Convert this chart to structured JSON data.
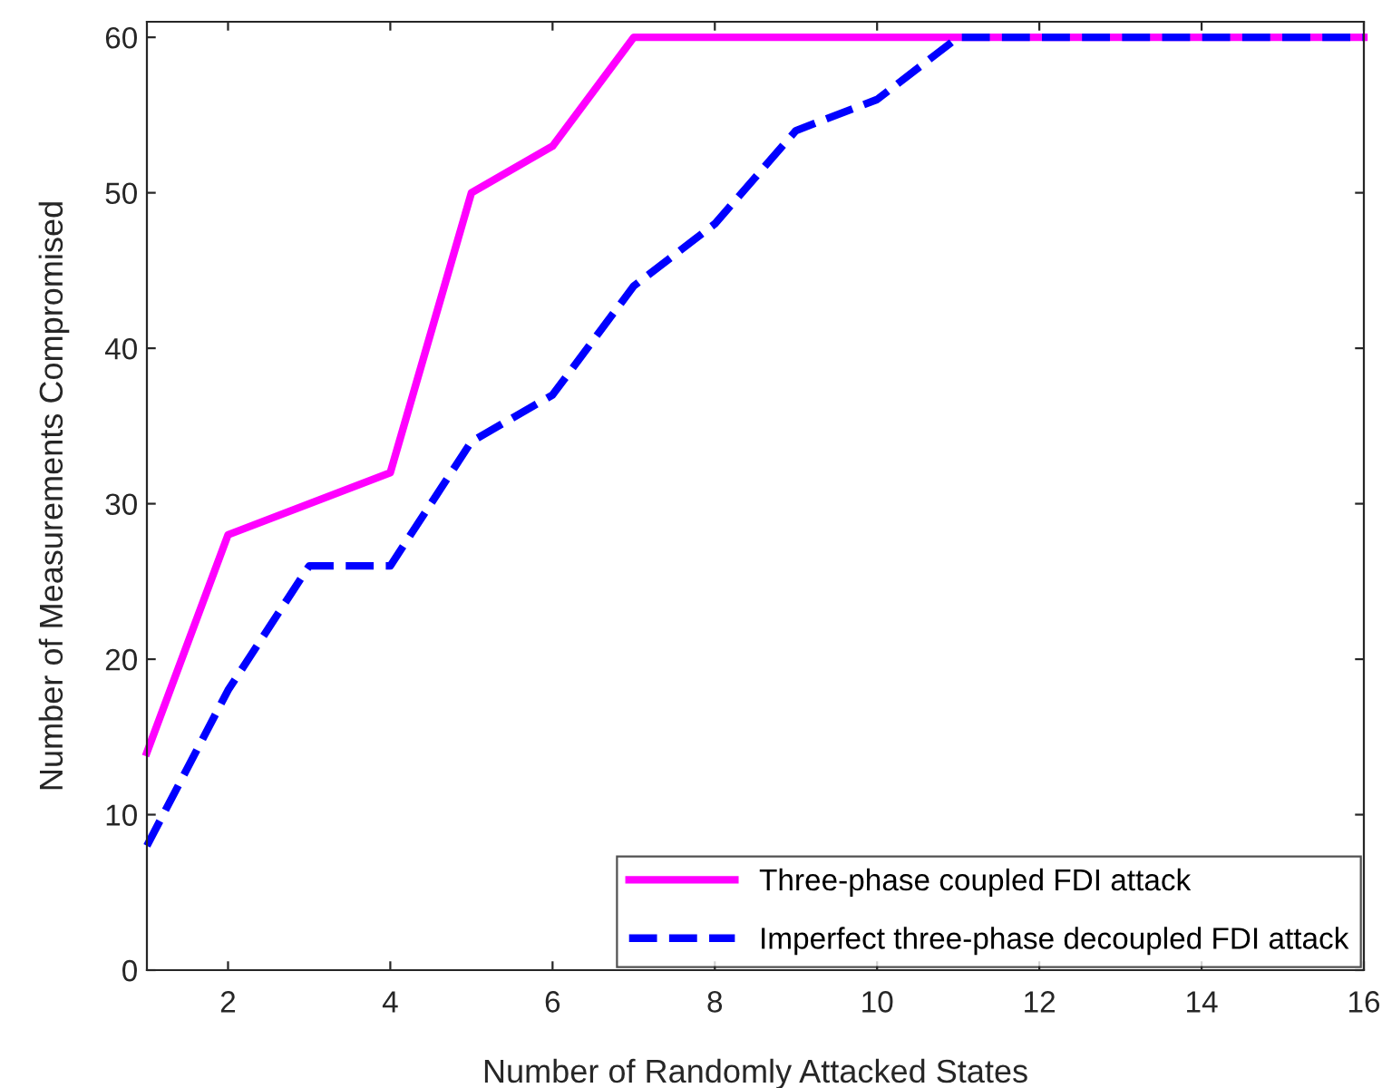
{
  "chart_data": {
    "type": "line",
    "xlabel": "Number of Randomly Attacked States",
    "ylabel": "Number of Measurements Compromised",
    "x": [
      1,
      2,
      3,
      4,
      5,
      6,
      7,
      8,
      9,
      10,
      11,
      12,
      13,
      14,
      15,
      16
    ],
    "series": [
      {
        "name": "Three-phase coupled FDI attack",
        "color": "#ff00ff",
        "line_style": "solid",
        "values": [
          14,
          28,
          30,
          32,
          50,
          53,
          60,
          60,
          60,
          60,
          60,
          60,
          60,
          60,
          60,
          60
        ]
      },
      {
        "name": "Imperfect three-phase decoupled FDI attack",
        "color": "#0000ff",
        "line_style": "dashed",
        "values": [
          8,
          18,
          26,
          26,
          34,
          37,
          44,
          48,
          54,
          56,
          60,
          60,
          60,
          60,
          60,
          60
        ]
      }
    ],
    "xlim": [
      1,
      16
    ],
    "xticks": [
      2,
      4,
      6,
      8,
      10,
      12,
      14,
      16
    ],
    "ylim": [
      0,
      61
    ],
    "yticks": [
      0,
      10,
      20,
      30,
      40,
      50,
      60
    ],
    "grid": false,
    "legend": "bottom right",
    "marker": "none"
  }
}
